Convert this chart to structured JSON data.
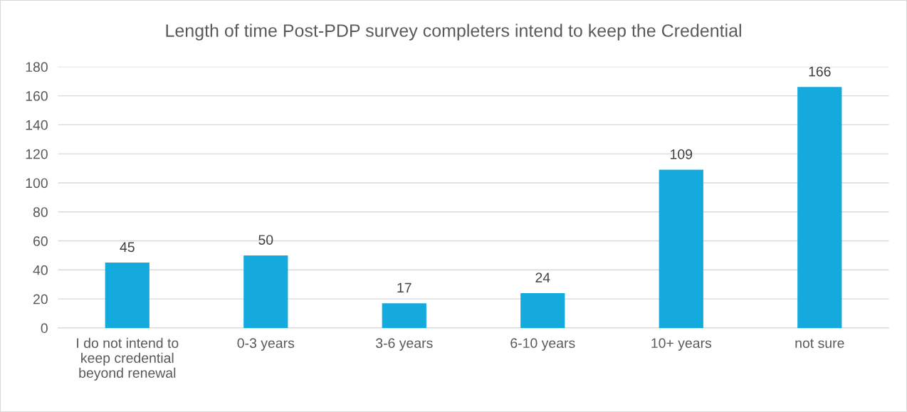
{
  "chart_data": {
    "type": "bar",
    "title": "Length of time Post-PDP survey completers intend to keep the Credential",
    "categories": [
      "I do not intend to\nkeep credential\nbeyond renewal",
      "0-3 years",
      "3-6 years",
      "6-10 years",
      "10+ years",
      "not sure"
    ],
    "values": [
      45,
      50,
      17,
      24,
      109,
      166
    ],
    "color": "#15aadd",
    "ylim": [
      0,
      180
    ],
    "yticks": [
      0,
      20,
      40,
      60,
      80,
      100,
      120,
      140,
      160,
      180
    ],
    "grid": "y",
    "data_labels": true
  }
}
